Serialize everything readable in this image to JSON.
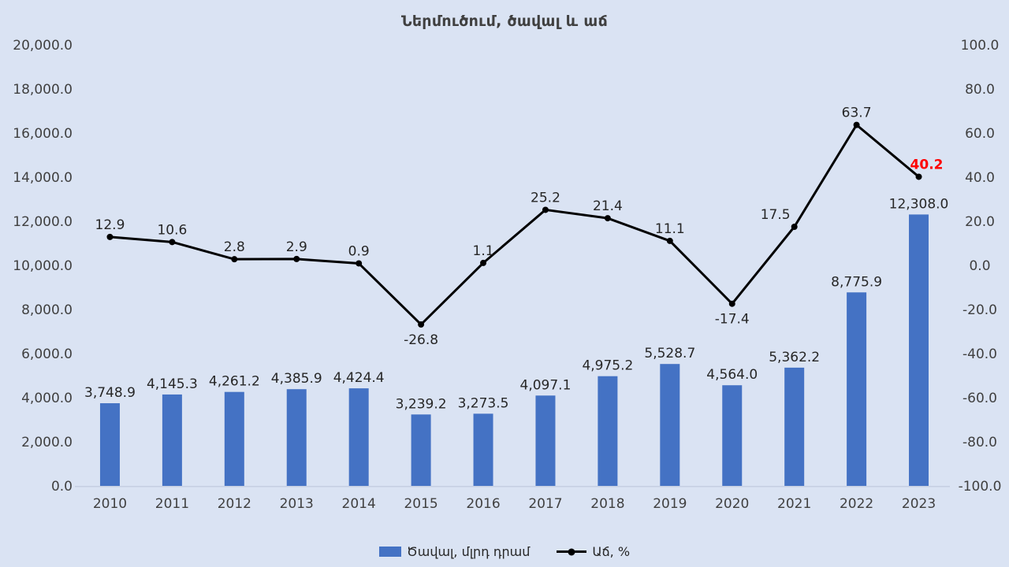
{
  "chart_data": {
    "type": "combo-bar-line",
    "title": "Ներմուծում, ծավալ և աճ",
    "categories": [
      "2010",
      "2011",
      "2012",
      "2013",
      "2014",
      "2015",
      "2016",
      "2017",
      "2018",
      "2019",
      "2020",
      "2021",
      "2022",
      "2023"
    ],
    "series": [
      {
        "name": "Ծավալ, մլրդ դրամ",
        "type": "bar",
        "axis": "left",
        "color": "#4472C4",
        "values": [
          3748.9,
          4145.3,
          4261.2,
          4385.9,
          4424.4,
          3239.2,
          3273.5,
          4097.1,
          4975.2,
          5528.7,
          4564.0,
          5362.2,
          8775.9,
          12308.0
        ]
      },
      {
        "name": "Աճ, %",
        "type": "line",
        "axis": "right",
        "color": "#000000",
        "values": [
          12.9,
          10.6,
          2.8,
          2.9,
          0.9,
          -26.8,
          1.1,
          25.2,
          21.4,
          11.1,
          -17.4,
          17.5,
          63.7,
          40.2
        ],
        "last_label_color": "#FF0000"
      }
    ],
    "left_axis": {
      "min": 0,
      "max": 20000,
      "step": 2000
    },
    "right_axis": {
      "min": -100,
      "max": 100,
      "step": 20
    },
    "legend_position": "bottom",
    "grid": false,
    "line_label_positions": [
      "above",
      "above",
      "above",
      "above",
      "above",
      "below",
      "above",
      "above",
      "above",
      "above",
      "below",
      "above",
      "above",
      "above"
    ],
    "line_label_dx": [
      0,
      0,
      0,
      0,
      0,
      0,
      0,
      0,
      0,
      0,
      0,
      -24,
      0,
      10
    ],
    "colors": {
      "background": "#DAE3F3",
      "axis_text": "#404040",
      "data_label": "#262626",
      "axis_line": "#C6CFE2",
      "title": "#404040",
      "highlight": "#FF0000"
    }
  }
}
